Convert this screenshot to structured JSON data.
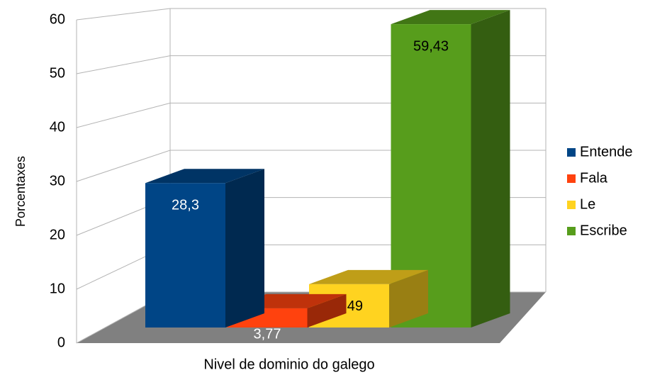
{
  "chart_data": {
    "type": "bar3d",
    "ylabel": "Porcentaxes",
    "xlabel": "Nivel de dominio do galego",
    "ylim": [
      0,
      60
    ],
    "yticks": [
      0,
      10,
      20,
      30,
      40,
      50,
      60
    ],
    "grid": true,
    "legend": "right",
    "series": [
      {
        "name": "Entende",
        "color": "#004586",
        "values": [
          28.3
        ],
        "value_labels": [
          "28,3"
        ]
      },
      {
        "name": "Fala",
        "color": "#ff420e",
        "values": [
          3.77
        ],
        "value_labels": [
          "3,77"
        ]
      },
      {
        "name": "Le",
        "color": "#ffd320",
        "values": [
          8.49
        ],
        "value_labels": [
          "8,49"
        ]
      },
      {
        "name": "Escribe",
        "color": "#579d1c",
        "values": [
          59.43
        ],
        "value_labels": [
          "59,43"
        ]
      }
    ]
  }
}
